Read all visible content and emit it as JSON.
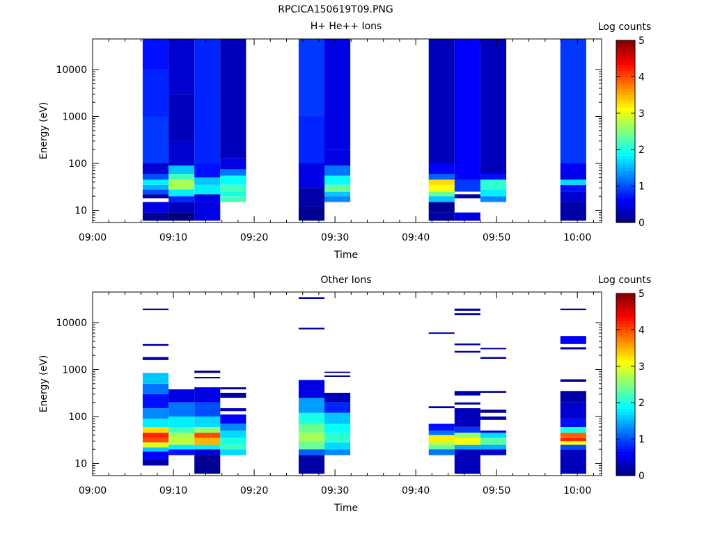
{
  "figure": {
    "title": "RPCICA150619T09.PNG"
  },
  "colorscale": {
    "name": "jet",
    "stops": [
      "#00007f",
      "#0000ff",
      "#007fff",
      "#00ffff",
      "#7fff7f",
      "#ffff00",
      "#ff7f00",
      "#ff0000",
      "#7f0000"
    ]
  },
  "chart_data": [
    {
      "type": "heatmap",
      "title": "H+ He++ Ions",
      "xlabel": "Time",
      "ylabel": "Energy (eV)",
      "x_ticks": [
        "09:00",
        "09:10",
        "09:20",
        "09:30",
        "09:40",
        "09:50",
        "10:00"
      ],
      "x_range_minutes": [
        0,
        63
      ],
      "y_scale": "log",
      "y_range": [
        5.5,
        45000
      ],
      "y_ticks": [
        "10",
        "100",
        "1000",
        "10000"
      ],
      "colorbar": {
        "label": "Log counts",
        "range": [
          0,
          5
        ],
        "ticks": [
          "0",
          "1",
          "2",
          "3",
          "4",
          "5"
        ]
      },
      "columns": [
        {
          "x_start_min": 6.2,
          "x_end_min": 9.4,
          "bins": [
            [
              6,
              9,
              0.1
            ],
            [
              9,
              15,
              0.5
            ],
            [
              18,
              22,
              0.2
            ],
            [
              22,
              28,
              1.0
            ],
            [
              28,
              35,
              1.5
            ],
            [
              35,
              45,
              1.8
            ],
            [
              45,
              60,
              1.0
            ],
            [
              60,
              100,
              0.4
            ],
            [
              100,
              1000,
              0.9
            ],
            [
              1000,
              10000,
              0.8
            ],
            [
              10000,
              45000,
              0.7
            ]
          ]
        },
        {
          "x_start_min": 9.4,
          "x_end_min": 12.6,
          "bins": [
            [
              6,
              9,
              0.0
            ],
            [
              9,
              15,
              0.3
            ],
            [
              15,
              20,
              0.8
            ],
            [
              20,
              28,
              1.8
            ],
            [
              28,
              45,
              2.7
            ],
            [
              45,
              60,
              2.2
            ],
            [
              60,
              90,
              1.6
            ],
            [
              90,
              300,
              0.4
            ],
            [
              300,
              3000,
              0.3
            ],
            [
              3000,
              45000,
              0.4
            ]
          ]
        },
        {
          "x_start_min": 12.6,
          "x_end_min": 15.8,
          "bins": [
            [
              6,
              15,
              0.5
            ],
            [
              15,
              22,
              0.5
            ],
            [
              22,
              35,
              1.8
            ],
            [
              35,
              50,
              1.6
            ],
            [
              50,
              100,
              0.7
            ],
            [
              100,
              45000,
              0.8
            ]
          ]
        },
        {
          "x_start_min": 15.8,
          "x_end_min": 19.0,
          "bins": [
            [
              15,
              20,
              2.2
            ],
            [
              20,
              25,
              2.0
            ],
            [
              25,
              35,
              2.2
            ],
            [
              35,
              55,
              1.9
            ],
            [
              55,
              75,
              1.2
            ],
            [
              75,
              130,
              0.5
            ],
            [
              130,
              45000,
              0.3
            ]
          ]
        },
        {
          "x_start_min": 25.5,
          "x_end_min": 28.7,
          "bins": [
            [
              6,
              12,
              0.1
            ],
            [
              12,
              30,
              0.2
            ],
            [
              30,
              100,
              0.5
            ],
            [
              100,
              1000,
              0.8
            ],
            [
              1000,
              45000,
              0.9
            ]
          ]
        },
        {
          "x_start_min": 28.7,
          "x_end_min": 31.9,
          "bins": [
            [
              15,
              20,
              1.3
            ],
            [
              20,
              25,
              1.6
            ],
            [
              25,
              35,
              2.4
            ],
            [
              35,
              55,
              1.9
            ],
            [
              55,
              90,
              1.2
            ],
            [
              90,
              200,
              0.5
            ],
            [
              200,
              45000,
              0.5
            ]
          ]
        },
        {
          "x_start_min": 41.6,
          "x_end_min": 44.8,
          "bins": [
            [
              6,
              9,
              0.2
            ],
            [
              9,
              15,
              0.1
            ],
            [
              15,
              20,
              1.6
            ],
            [
              20,
              25,
              2.4
            ],
            [
              25,
              35,
              3.1
            ],
            [
              35,
              45,
              3.3
            ],
            [
              45,
              60,
              1.1
            ],
            [
              60,
              100,
              0.6
            ],
            [
              100,
              45000,
              0.3
            ]
          ]
        },
        {
          "x_start_min": 44.8,
          "x_end_min": 48.0,
          "bins": [
            [
              6,
              9,
              0.5
            ],
            [
              18,
              22,
              0.2
            ],
            [
              25,
              45,
              0.9
            ],
            [
              45,
              100,
              0.6
            ],
            [
              100,
              45000,
              0.6
            ]
          ]
        },
        {
          "x_start_min": 48.0,
          "x_end_min": 51.2,
          "bins": [
            [
              15,
              20,
              1.3
            ],
            [
              20,
              28,
              1.8
            ],
            [
              28,
              45,
              2.1
            ],
            [
              45,
              60,
              0.7
            ],
            [
              60,
              45000,
              0.3
            ]
          ]
        },
        {
          "x_start_min": 57.9,
          "x_end_min": 61.1,
          "bins": [
            [
              6,
              15,
              0.2
            ],
            [
              15,
              25,
              0.4
            ],
            [
              25,
              35,
              0.7
            ],
            [
              35,
              45,
              1.7
            ],
            [
              45,
              60,
              0.5
            ],
            [
              60,
              100,
              0.6
            ],
            [
              100,
              45000,
              0.9
            ]
          ]
        }
      ]
    },
    {
      "type": "heatmap",
      "title": "Other Ions",
      "xlabel": "Time",
      "ylabel": "Energy (eV)",
      "x_ticks": [
        "09:00",
        "09:10",
        "09:20",
        "09:30",
        "09:40",
        "09:50",
        "10:00"
      ],
      "x_range_minutes": [
        0,
        63
      ],
      "y_scale": "log",
      "y_range": [
        5.5,
        45000
      ],
      "y_ticks": [
        "10",
        "100",
        "1000",
        "10000"
      ],
      "colorbar": {
        "label": "Log counts",
        "range": [
          0,
          5
        ],
        "ticks": [
          "0",
          "1",
          "2",
          "3",
          "4",
          "5"
        ]
      },
      "columns": [
        {
          "x_start_min": 6.2,
          "x_end_min": 9.4,
          "bins": [
            [
              9,
              12,
              0.2
            ],
            [
              12,
              18,
              0.6
            ],
            [
              18,
              22,
              1.6
            ],
            [
              22,
              28,
              3.0
            ],
            [
              28,
              35,
              4.0
            ],
            [
              35,
              45,
              4.2
            ],
            [
              45,
              60,
              3.3
            ],
            [
              60,
              90,
              1.8
            ],
            [
              90,
              150,
              1.3
            ],
            [
              150,
              300,
              0.7
            ],
            [
              300,
              500,
              1.2
            ],
            [
              500,
              850,
              1.6
            ],
            [
              1600,
              1850,
              0.2
            ],
            [
              3200,
              3500,
              0.2
            ],
            [
              18500,
              20000,
              0.2
            ]
          ]
        },
        {
          "x_start_min": 9.4,
          "x_end_min": 12.6,
          "bins": [
            [
              15,
              20,
              0.7
            ],
            [
              20,
              25,
              1.8
            ],
            [
              25,
              35,
              2.8
            ],
            [
              35,
              45,
              2.7
            ],
            [
              45,
              60,
              2.2
            ],
            [
              60,
              100,
              1.8
            ],
            [
              100,
              200,
              1.2
            ],
            [
              200,
              380,
              0.5
            ]
          ]
        },
        {
          "x_start_min": 12.6,
          "x_end_min": 15.8,
          "bins": [
            [
              6,
              15,
              0.1
            ],
            [
              15,
              20,
              0.4
            ],
            [
              20,
              25,
              1.8
            ],
            [
              25,
              35,
              3.5
            ],
            [
              35,
              45,
              4.0
            ],
            [
              45,
              60,
              2.6
            ],
            [
              60,
              100,
              1.7
            ],
            [
              100,
              200,
              1.0
            ],
            [
              200,
              420,
              0.5
            ],
            [
              650,
              700,
              0.1
            ],
            [
              850,
              950,
              0.1
            ]
          ]
        },
        {
          "x_start_min": 15.8,
          "x_end_min": 19.0,
          "bins": [
            [
              15,
              20,
              1.7
            ],
            [
              20,
              25,
              2.2
            ],
            [
              25,
              35,
              2.0
            ],
            [
              35,
              50,
              1.7
            ],
            [
              50,
              70,
              1.3
            ],
            [
              70,
              110,
              0.6
            ],
            [
              130,
              150,
              0.3
            ],
            [
              250,
              320,
              0.2
            ],
            [
              380,
              420,
              0.1
            ]
          ]
        },
        {
          "x_start_min": 25.5,
          "x_end_min": 28.7,
          "bins": [
            [
              6,
              15,
              0.2
            ],
            [
              15,
              20,
              1.1
            ],
            [
              20,
              30,
              2.4
            ],
            [
              30,
              45,
              2.7
            ],
            [
              45,
              70,
              2.4
            ],
            [
              70,
              120,
              2.0
            ],
            [
              120,
              250,
              1.4
            ],
            [
              250,
              600,
              0.5
            ],
            [
              7200,
              7800,
              0.2
            ],
            [
              32000,
              35000,
              0.2
            ]
          ]
        },
        {
          "x_start_min": 28.7,
          "x_end_min": 31.9,
          "bins": [
            [
              15,
              20,
              1.3
            ],
            [
              20,
              28,
              1.7
            ],
            [
              28,
              45,
              2.1
            ],
            [
              45,
              70,
              1.9
            ],
            [
              70,
              120,
              1.6
            ],
            [
              120,
              200,
              0.8
            ],
            [
              200,
              320,
              0.3
            ],
            [
              700,
              750,
              0.1
            ],
            [
              850,
              900,
              0.1
            ]
          ]
        },
        {
          "x_start_min": 41.6,
          "x_end_min": 44.8,
          "bins": [
            [
              15,
              20,
              1.2
            ],
            [
              20,
              25,
              2.4
            ],
            [
              25,
              30,
              2.8
            ],
            [
              30,
              40,
              3.2
            ],
            [
              40,
              50,
              1.2
            ],
            [
              50,
              70,
              0.7
            ],
            [
              150,
              165,
              0.1
            ],
            [
              5800,
              6200,
              0.2
            ]
          ]
        },
        {
          "x_start_min": 44.8,
          "x_end_min": 48.0,
          "bins": [
            [
              6,
              20,
              0.3
            ],
            [
              20,
              25,
              1.5
            ],
            [
              25,
              35,
              3.1
            ],
            [
              35,
              45,
              2.6
            ],
            [
              45,
              60,
              0.9
            ],
            [
              60,
              150,
              0.3
            ],
            [
              180,
              200,
              0.2
            ],
            [
              280,
              350,
              0.2
            ],
            [
              2300,
              2500,
              0.2
            ],
            [
              3300,
              3600,
              0.2
            ],
            [
              14500,
              16000,
              0.2
            ],
            [
              18000,
              20000,
              0.2
            ]
          ]
        },
        {
          "x_start_min": 48.0,
          "x_end_min": 51.2,
          "bins": [
            [
              15,
              20,
              0.4
            ],
            [
              20,
              25,
              1.5
            ],
            [
              25,
              35,
              2.3
            ],
            [
              35,
              45,
              1.7
            ],
            [
              45,
              50,
              0.5
            ],
            [
              85,
              100,
              0.2
            ],
            [
              120,
              140,
              0.1
            ],
            [
              320,
              350,
              0.1
            ],
            [
              1700,
              1850,
              0.1
            ],
            [
              2700,
              2900,
              0.1
            ]
          ]
        },
        {
          "x_start_min": 57.9,
          "x_end_min": 61.1,
          "bins": [
            [
              6,
              20,
              0.3
            ],
            [
              20,
              25,
              1.0
            ],
            [
              25,
              30,
              3.1
            ],
            [
              30,
              35,
              4.2
            ],
            [
              35,
              45,
              3.9
            ],
            [
              45,
              60,
              2.0
            ],
            [
              60,
              90,
              0.7
            ],
            [
              90,
              200,
              0.4
            ],
            [
              200,
              350,
              0.2
            ],
            [
              550,
              620,
              0.1
            ],
            [
              2700,
              3000,
              0.1
            ],
            [
              3500,
              5200,
              0.6
            ],
            [
              18500,
              20000,
              0.1
            ]
          ]
        }
      ]
    }
  ]
}
